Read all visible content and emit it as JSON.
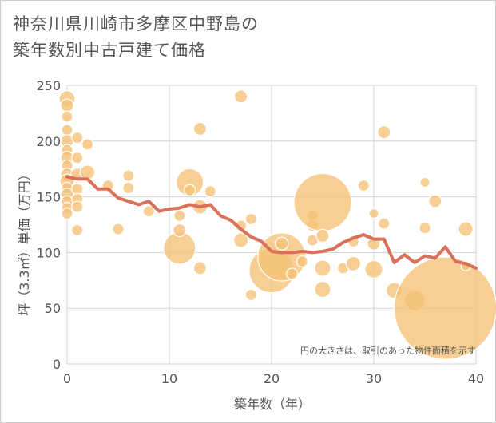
{
  "title_line1": "神奈川県川崎市多摩区中野島の",
  "title_line2": "築年数別中古戸建て価格",
  "chart_data": {
    "type": "scatter",
    "title": "神奈川県川崎市多摩区中野島の築年数別中古戸建て価格",
    "xlabel": "築年数（年）",
    "ylabel": "坪（3.3㎡）単価（万円）",
    "xlim": [
      0,
      40
    ],
    "ylim": [
      0,
      250
    ],
    "x_ticks": [
      "0",
      "10",
      "20",
      "30",
      "40"
    ],
    "y_ticks": [
      "0",
      "50",
      "100",
      "150",
      "200",
      "250"
    ],
    "grid": true,
    "note": "円の大きさは、取引のあった物件面積を示す",
    "bubble_color": "#f5c277",
    "line_color": "#d9705a",
    "bubbles": [
      {
        "x": 0,
        "y": 238,
        "r": 10
      },
      {
        "x": 0,
        "y": 232,
        "r": 8
      },
      {
        "x": 0,
        "y": 222,
        "r": 7
      },
      {
        "x": 0,
        "y": 210,
        "r": 7
      },
      {
        "x": 0,
        "y": 200,
        "r": 8
      },
      {
        "x": 0,
        "y": 192,
        "r": 7
      },
      {
        "x": 0,
        "y": 185,
        "r": 8
      },
      {
        "x": 0,
        "y": 178,
        "r": 7
      },
      {
        "x": 0,
        "y": 170,
        "r": 8
      },
      {
        "x": 0,
        "y": 164,
        "r": 9
      },
      {
        "x": 0,
        "y": 158,
        "r": 7
      },
      {
        "x": 0,
        "y": 152,
        "r": 8
      },
      {
        "x": 0,
        "y": 146,
        "r": 7
      },
      {
        "x": 0,
        "y": 140,
        "r": 7
      },
      {
        "x": 0,
        "y": 135,
        "r": 7
      },
      {
        "x": 1,
        "y": 203,
        "r": 7
      },
      {
        "x": 1,
        "y": 185,
        "r": 7
      },
      {
        "x": 1,
        "y": 170,
        "r": 8
      },
      {
        "x": 1,
        "y": 157,
        "r": 7
      },
      {
        "x": 1,
        "y": 148,
        "r": 7
      },
      {
        "x": 1,
        "y": 141,
        "r": 7
      },
      {
        "x": 1,
        "y": 120,
        "r": 7
      },
      {
        "x": 2,
        "y": 197,
        "r": 7
      },
      {
        "x": 2,
        "y": 172,
        "r": 9
      },
      {
        "x": 4,
        "y": 160,
        "r": 7
      },
      {
        "x": 5,
        "y": 121,
        "r": 7
      },
      {
        "x": 6,
        "y": 169,
        "r": 7
      },
      {
        "x": 6,
        "y": 158,
        "r": 7
      },
      {
        "x": 8,
        "y": 137,
        "r": 7
      },
      {
        "x": 11,
        "y": 104,
        "r": 20
      },
      {
        "x": 11,
        "y": 120,
        "r": 8
      },
      {
        "x": 11,
        "y": 133,
        "r": 7
      },
      {
        "x": 12,
        "y": 163,
        "r": 17
      },
      {
        "x": 12,
        "y": 156,
        "r": 7
      },
      {
        "x": 13,
        "y": 211,
        "r": 8
      },
      {
        "x": 13,
        "y": 141,
        "r": 9
      },
      {
        "x": 13,
        "y": 86,
        "r": 8
      },
      {
        "x": 14,
        "y": 155,
        "r": 7
      },
      {
        "x": 17,
        "y": 240,
        "r": 8
      },
      {
        "x": 17,
        "y": 124,
        "r": 7
      },
      {
        "x": 17,
        "y": 111,
        "r": 9
      },
      {
        "x": 18,
        "y": 130,
        "r": 7
      },
      {
        "x": 18,
        "y": 62,
        "r": 7
      },
      {
        "x": 20,
        "y": 84,
        "r": 28
      },
      {
        "x": 21,
        "y": 96,
        "r": 30
      },
      {
        "x": 21,
        "y": 108,
        "r": 8
      },
      {
        "x": 22,
        "y": 81,
        "r": 7
      },
      {
        "x": 23,
        "y": 92,
        "r": 7
      },
      {
        "x": 24,
        "y": 133,
        "r": 7
      },
      {
        "x": 24,
        "y": 124,
        "r": 7
      },
      {
        "x": 24,
        "y": 111,
        "r": 7
      },
      {
        "x": 25,
        "y": 145,
        "r": 36
      },
      {
        "x": 25,
        "y": 115,
        "r": 8
      },
      {
        "x": 25,
        "y": 86,
        "r": 10
      },
      {
        "x": 25,
        "y": 67,
        "r": 10
      },
      {
        "x": 27,
        "y": 86,
        "r": 7
      },
      {
        "x": 28,
        "y": 110,
        "r": 7
      },
      {
        "x": 28,
        "y": 90,
        "r": 9
      },
      {
        "x": 29,
        "y": 160,
        "r": 7
      },
      {
        "x": 30,
        "y": 135,
        "r": 6
      },
      {
        "x": 30,
        "y": 108,
        "r": 8
      },
      {
        "x": 30,
        "y": 85,
        "r": 11
      },
      {
        "x": 31,
        "y": 208,
        "r": 8
      },
      {
        "x": 31,
        "y": 126,
        "r": 7
      },
      {
        "x": 32,
        "y": 66,
        "r": 10
      },
      {
        "x": 34,
        "y": 57,
        "r": 13
      },
      {
        "x": 35,
        "y": 163,
        "r": 6
      },
      {
        "x": 35,
        "y": 122,
        "r": 7
      },
      {
        "x": 36,
        "y": 146,
        "r": 8
      },
      {
        "x": 37,
        "y": 50,
        "r": 64
      },
      {
        "x": 39,
        "y": 121,
        "r": 9
      },
      {
        "x": 39,
        "y": 88,
        "r": 6
      }
    ],
    "series": [
      {
        "type": "line",
        "x": [
          0,
          1,
          2,
          3,
          4,
          5,
          6,
          7,
          8,
          9,
          10,
          11,
          12,
          13,
          14,
          15,
          16,
          17,
          18,
          19,
          20,
          21,
          22,
          23,
          24,
          25,
          26,
          27,
          28,
          29,
          30,
          31,
          32,
          33,
          34,
          35,
          36,
          37,
          38,
          39,
          40
        ],
        "values": [
          168,
          166,
          166,
          157,
          157,
          149,
          146,
          143,
          146,
          137,
          139,
          140,
          143,
          141,
          143,
          133,
          129,
          121,
          114,
          110,
          101,
          100,
          100,
          101,
          100,
          101,
          103,
          109,
          113,
          116,
          112,
          112,
          91,
          98,
          91,
          97,
          95,
          105,
          92,
          90,
          86
        ]
      }
    ]
  }
}
